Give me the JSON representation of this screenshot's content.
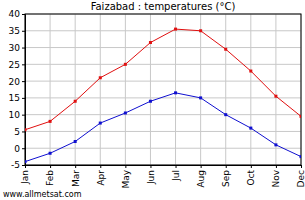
{
  "chart_data": {
    "type": "line",
    "title": "Faizabad : temperatures (°C)",
    "categories": [
      "Jan",
      "Feb",
      "Mar",
      "Apr",
      "May",
      "Jun",
      "Jul",
      "Aug",
      "Sep",
      "Oct",
      "Nov",
      "Dec"
    ],
    "series": [
      {
        "color": "#e01010",
        "marker": "square",
        "values": [
          5.5,
          8,
          14,
          21,
          25,
          31.5,
          35.5,
          35,
          29.5,
          23,
          15.5,
          9.5
        ]
      },
      {
        "color": "#1010d0",
        "marker": "square",
        "values": [
          -4,
          -1.5,
          2,
          7.5,
          10.5,
          14,
          16.5,
          15,
          10,
          6,
          1,
          -2.5
        ]
      }
    ],
    "ylim": [
      -5,
      40
    ],
    "yticks": [
      -5,
      0,
      5,
      10,
      15,
      20,
      25,
      30,
      35,
      40
    ],
    "grid": true,
    "annotations": [
      "www.allmetsat.com"
    ]
  }
}
